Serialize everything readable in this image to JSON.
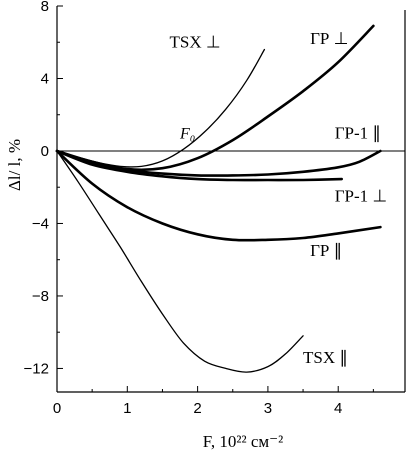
{
  "chart_data": {
    "type": "line",
    "xlabel": "F, 10²² см⁻²",
    "ylabel": "Δl/ l, %",
    "xlim": [
      0,
      4.95
    ],
    "ylim": [
      -13.3,
      8
    ],
    "x_ticks": [
      "0",
      "1",
      "2",
      "3",
      "4"
    ],
    "y_ticks": [
      "8",
      "4",
      "0",
      "−4",
      "−8",
      "−12"
    ],
    "grid": false,
    "annotation": {
      "text": "F₀",
      "x": 1.75,
      "y": 0.7
    },
    "series": [
      {
        "name": "TSX ⊥",
        "stroke": "thin",
        "label_pos": [
          1.6,
          5.7
        ],
        "x": [
          0,
          0.3,
          0.6,
          0.9,
          1.2,
          1.5,
          1.8,
          2.1,
          2.4,
          2.7,
          2.95
        ],
        "y": [
          0,
          -0.35,
          -0.65,
          -0.85,
          -0.85,
          -0.55,
          0.1,
          1.05,
          2.3,
          3.9,
          5.6
        ]
      },
      {
        "name": "ГР ⊥",
        "stroke": "thick",
        "label_pos": [
          3.6,
          5.9
        ],
        "x": [
          0,
          0.5,
          1.0,
          1.5,
          2.0,
          2.5,
          3.0,
          3.5,
          4.0,
          4.5
        ],
        "y": [
          0,
          -0.6,
          -1.0,
          -0.95,
          -0.4,
          0.6,
          1.9,
          3.3,
          4.9,
          6.9
        ]
      },
      {
        "name": "ГР-1 ∥",
        "stroke": "thick",
        "label_pos": [
          3.95,
          0.7
        ],
        "x": [
          0,
          0.5,
          1.0,
          1.5,
          2.0,
          2.5,
          3.0,
          3.5,
          4.0,
          4.3,
          4.6
        ],
        "y": [
          0,
          -0.65,
          -1.05,
          -1.25,
          -1.35,
          -1.35,
          -1.3,
          -1.15,
          -0.9,
          -0.6,
          0
        ]
      },
      {
        "name": "ГР-1 ⊥",
        "stroke": "thick",
        "label_pos": [
          3.95,
          -2.8
        ],
        "x": [
          0,
          0.5,
          1.0,
          1.5,
          2.0,
          2.5,
          3.0,
          3.5,
          4.05
        ],
        "y": [
          0,
          -0.75,
          -1.15,
          -1.4,
          -1.55,
          -1.6,
          -1.6,
          -1.6,
          -1.55
        ]
      },
      {
        "name": "ГР ∥",
        "stroke": "thick",
        "label_pos": [
          3.6,
          -5.8
        ],
        "x": [
          0,
          0.5,
          1.0,
          1.5,
          2.0,
          2.5,
          3.0,
          3.5,
          4.0,
          4.6
        ],
        "y": [
          0,
          -1.8,
          -3.1,
          -4.0,
          -4.6,
          -4.9,
          -4.9,
          -4.8,
          -4.55,
          -4.2
        ]
      },
      {
        "name": "TSX ∥",
        "stroke": "thin",
        "label_pos": [
          3.5,
          -11.7
        ],
        "x": [
          0,
          0.3,
          0.6,
          0.9,
          1.2,
          1.5,
          1.8,
          2.1,
          2.4,
          2.7,
          3.0,
          3.25,
          3.5
        ],
        "y": [
          0,
          -1.7,
          -3.5,
          -5.3,
          -7.2,
          -9.0,
          -10.6,
          -11.6,
          -12.0,
          -12.2,
          -11.9,
          -11.2,
          -10.2
        ]
      }
    ]
  }
}
